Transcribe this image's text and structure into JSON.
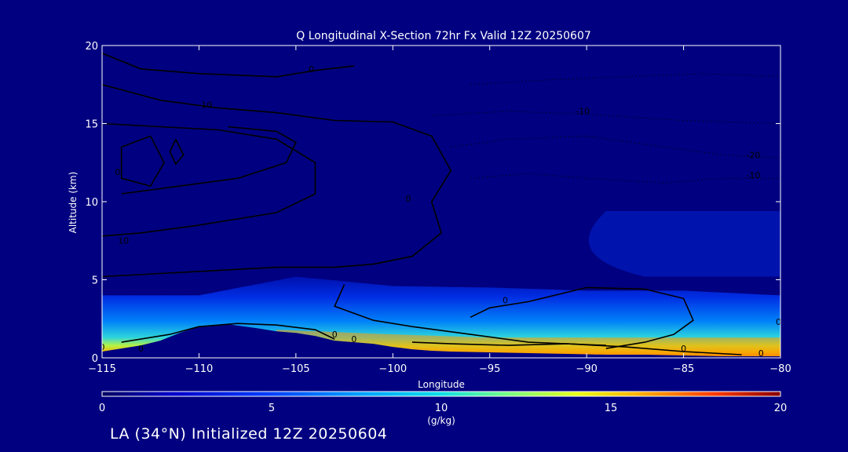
{
  "chart_data": {
    "type": "heatmap",
    "title": "Q Longitudinal X-Section 72hr  Fx Valid 12Z 20250607",
    "xlabel": "Longitude",
    "ylabel": "Altitude (km)",
    "xlim": [
      -115,
      -80
    ],
    "ylim": [
      0,
      20
    ],
    "x_ticks": [
      -115,
      -110,
      -105,
      -100,
      -95,
      -90,
      -85,
      -80
    ],
    "y_ticks": [
      0,
      5,
      10,
      15,
      20
    ],
    "colorbar": {
      "label": "(g/kg)",
      "range": [
        0,
        20
      ],
      "ticks": [
        0,
        5,
        10,
        15,
        20
      ]
    },
    "surface_terrain_km": {
      "lon": [
        -115,
        -114,
        -113,
        -112,
        -111,
        -110,
        -109,
        -108.5,
        -107,
        -106,
        -105,
        -104,
        -103,
        -102,
        -101,
        -100,
        -99,
        -98,
        -97,
        -95,
        -93,
        -91,
        -89,
        -87,
        -85,
        -83,
        -81,
        -80
      ],
      "alt": [
        0.4,
        0.6,
        0.8,
        1.1,
        1.6,
        2.0,
        2.1,
        2.15,
        1.9,
        1.7,
        1.6,
        1.4,
        1.1,
        1.0,
        0.9,
        0.7,
        0.55,
        0.45,
        0.4,
        0.35,
        0.3,
        0.25,
        0.2,
        0.2,
        0.15,
        0.1,
        0.1,
        0.1
      ]
    },
    "moisture_layer_top_km": {
      "lon": [
        -115,
        -110,
        -105,
        -100,
        -95,
        -90,
        -85,
        -80
      ],
      "alt": [
        4.0,
        4.0,
        5.2,
        4.6,
        4.5,
        4.3,
        4.3,
        4.0
      ]
    },
    "peak_q_band_km": {
      "lon": [
        -106,
        -100,
        -95,
        -90,
        -85,
        -80
      ],
      "alt_top": [
        1.8,
        1.5,
        1.3,
        1.3,
        1.3,
        1.3
      ]
    },
    "contour_labels": [
      {
        "text": "0",
        "lon": -104.2,
        "alt": 18.3
      },
      {
        "text": "10",
        "lon": -109.6,
        "alt": 16.0
      },
      {
        "text": "0",
        "lon": -114.2,
        "alt": 11.7
      },
      {
        "text": "10",
        "lon": -113.9,
        "alt": 7.3
      },
      {
        "text": "0",
        "lon": -99.2,
        "alt": 10.0
      },
      {
        "text": "0",
        "lon": -94.2,
        "alt": 3.5
      },
      {
        "text": "0",
        "lon": -115.0,
        "alt": 0.5
      },
      {
        "text": "0",
        "lon": -113.0,
        "alt": 0.4
      },
      {
        "text": "0",
        "lon": -103.0,
        "alt": 1.3
      },
      {
        "text": "0",
        "lon": -102.0,
        "alt": 1.0
      },
      {
        "text": "0",
        "lon": -85.0,
        "alt": 0.4
      },
      {
        "text": "0",
        "lon": -81.0,
        "alt": 0.1
      },
      {
        "text": "0",
        "lon": -80.1,
        "alt": 2.1
      },
      {
        "text": "-10",
        "lon": -90.2,
        "alt": 15.6
      },
      {
        "text": "-20",
        "lon": -81.4,
        "alt": 12.8
      },
      {
        "text": "-10",
        "lon": -81.4,
        "alt": 11.5
      }
    ]
  },
  "footer": "LA (34°N) Initialized 12Z 20250604",
  "colors": {
    "background": "#000080",
    "foreground": "#ffffff",
    "contour": "#000000",
    "colormap": [
      "#00007f",
      "#0000d0",
      "#0050ff",
      "#00a8ff",
      "#20e8e0",
      "#7cff80",
      "#e8ff18",
      "#ffb000",
      "#ff5000",
      "#d00000",
      "#800000"
    ]
  }
}
